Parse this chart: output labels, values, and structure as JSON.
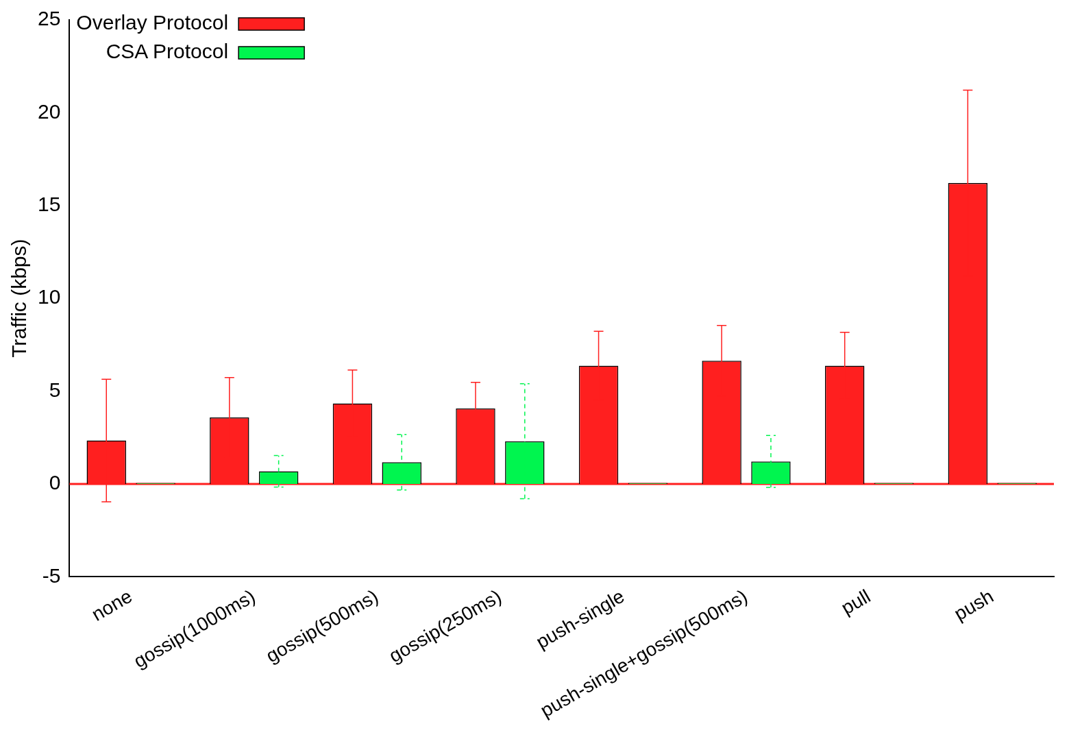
{
  "chart_data": {
    "type": "bar",
    "ylabel": "Traffic (kbps)",
    "categories": [
      "none",
      "gossip(1000ms)",
      "gossip(500ms)",
      "gossip(250ms)",
      "push-single",
      "push-single+gossip(500ms)",
      "pull",
      "push"
    ],
    "series": [
      {
        "name": "Overlay Protocol",
        "color": "#ff1f1f",
        "values": [
          2.34,
          3.58,
          4.34,
          4.07,
          6.37,
          6.64,
          6.37,
          16.21
        ],
        "errors": [
          3.3,
          2.15,
          1.8,
          1.4,
          1.85,
          1.9,
          1.8,
          5.0
        ]
      },
      {
        "name": "CSA Protocol",
        "color": "#00f54f",
        "values": [
          0.05,
          0.68,
          1.17,
          2.3,
          0.05,
          1.21,
          0.05,
          0.05
        ],
        "errors": [
          null,
          0.85,
          1.5,
          3.1,
          null,
          1.4,
          null,
          null
        ]
      }
    ],
    "ylim": [
      -5,
      25
    ],
    "yticks": [
      -5,
      0,
      5,
      10,
      15,
      20,
      25
    ],
    "grid": false,
    "legend": "top left",
    "ref_lines": [
      {
        "axis": "y",
        "value": 0,
        "color": "#ff1f1f"
      }
    ]
  }
}
